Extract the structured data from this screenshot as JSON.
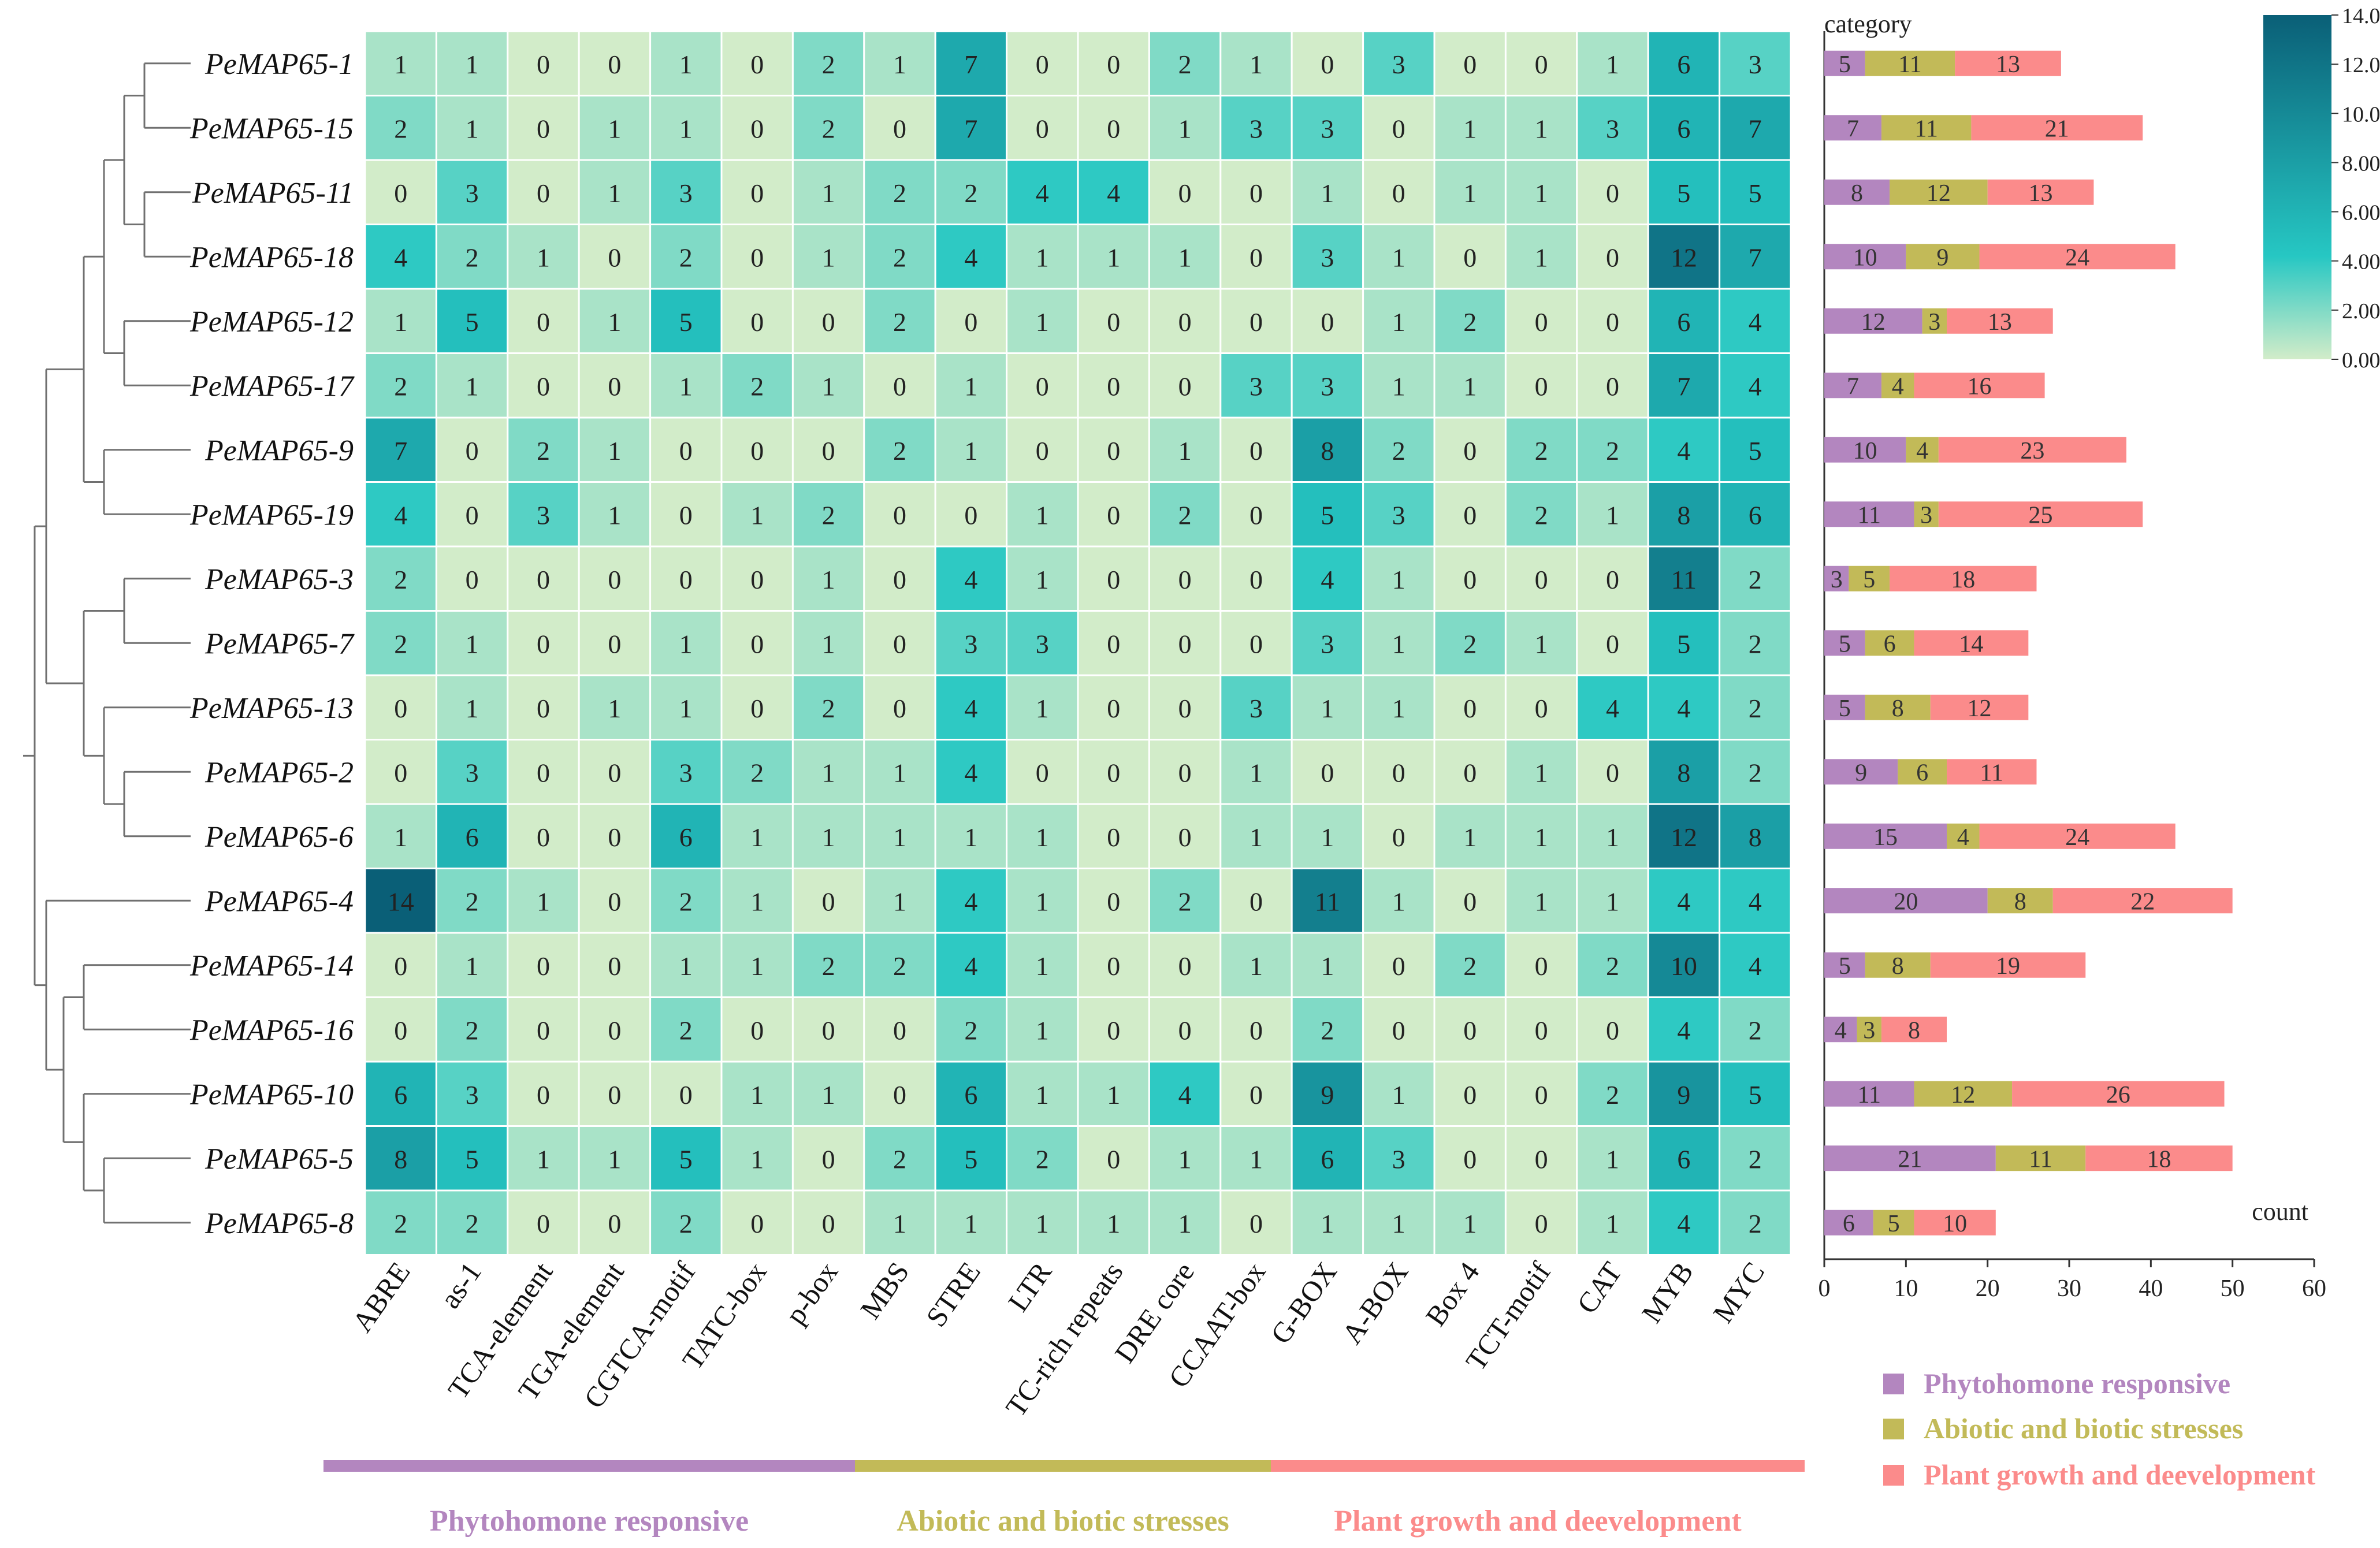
{
  "chart_data": [
    {
      "type": "heatmap",
      "rows": [
        "PeMAP65-1",
        "PeMAP65-15",
        "PeMAP65-11",
        "PeMAP65-18",
        "PeMAP65-12",
        "PeMAP65-17",
        "PeMAP65-9",
        "PeMAP65-19",
        "PeMAP65-3",
        "PeMAP65-7",
        "PeMAP65-13",
        "PeMAP65-2",
        "PeMAP65-6",
        "PeMAP65-4",
        "PeMAP65-14",
        "PeMAP65-16",
        "PeMAP65-10",
        "PeMAP65-5",
        "PeMAP65-8"
      ],
      "columns": [
        "ABRE",
        "as-1",
        "TCA-element",
        "TGA-element",
        "CGTCA-motif",
        "TATC-box",
        "p-box",
        "MBS",
        "STRE",
        "LTR",
        "TC-rich repeats",
        "DRE core",
        "CCAAT-box",
        "G-BOX",
        "A-BOX",
        "Box 4",
        "TCT-motif",
        "CAT",
        "MYB",
        "MYC"
      ],
      "values": [
        [
          1,
          1,
          0,
          0,
          1,
          0,
          2,
          1,
          7,
          0,
          0,
          2,
          1,
          0,
          3,
          0,
          0,
          1,
          6,
          3
        ],
        [
          2,
          1,
          0,
          1,
          1,
          0,
          2,
          0,
          7,
          0,
          0,
          1,
          3,
          3,
          0,
          1,
          1,
          3,
          6,
          7
        ],
        [
          0,
          3,
          0,
          1,
          3,
          0,
          1,
          2,
          2,
          4,
          4,
          0,
          0,
          1,
          0,
          1,
          1,
          0,
          5,
          5
        ],
        [
          4,
          2,
          1,
          0,
          2,
          0,
          1,
          2,
          4,
          1,
          1,
          1,
          0,
          3,
          1,
          0,
          1,
          0,
          12,
          7
        ],
        [
          1,
          5,
          0,
          1,
          5,
          0,
          0,
          2,
          0,
          1,
          0,
          0,
          0,
          0,
          1,
          2,
          0,
          0,
          6,
          4
        ],
        [
          2,
          1,
          0,
          0,
          1,
          2,
          1,
          0,
          1,
          0,
          0,
          0,
          3,
          3,
          1,
          1,
          0,
          0,
          7,
          4
        ],
        [
          7,
          0,
          2,
          1,
          0,
          0,
          0,
          2,
          1,
          0,
          0,
          1,
          0,
          8,
          2,
          0,
          2,
          2,
          4,
          5
        ],
        [
          4,
          0,
          3,
          1,
          0,
          1,
          2,
          0,
          0,
          1,
          0,
          2,
          0,
          5,
          3,
          0,
          2,
          1,
          8,
          6
        ],
        [
          2,
          0,
          0,
          0,
          0,
          0,
          1,
          0,
          4,
          1,
          0,
          0,
          0,
          4,
          1,
          0,
          0,
          0,
          11,
          2
        ],
        [
          2,
          1,
          0,
          0,
          1,
          0,
          1,
          0,
          3,
          3,
          0,
          0,
          0,
          3,
          1,
          2,
          1,
          0,
          5,
          2
        ],
        [
          0,
          1,
          0,
          1,
          1,
          0,
          2,
          0,
          4,
          1,
          0,
          0,
          3,
          1,
          1,
          0,
          0,
          4,
          4,
          2
        ],
        [
          0,
          3,
          0,
          0,
          3,
          2,
          1,
          1,
          4,
          0,
          0,
          0,
          1,
          0,
          0,
          0,
          1,
          0,
          8,
          2
        ],
        [
          1,
          6,
          0,
          0,
          6,
          1,
          1,
          1,
          1,
          1,
          0,
          0,
          1,
          1,
          0,
          1,
          1,
          1,
          12,
          8
        ],
        [
          14,
          2,
          1,
          0,
          2,
          1,
          0,
          1,
          4,
          1,
          0,
          2,
          0,
          11,
          1,
          0,
          1,
          1,
          4,
          4
        ],
        [
          0,
          1,
          0,
          0,
          1,
          1,
          2,
          2,
          4,
          1,
          0,
          0,
          1,
          1,
          0,
          2,
          0,
          2,
          10,
          4
        ],
        [
          0,
          2,
          0,
          0,
          2,
          0,
          0,
          0,
          2,
          1,
          0,
          0,
          0,
          2,
          0,
          0,
          0,
          0,
          4,
          2
        ],
        [
          6,
          3,
          0,
          0,
          0,
          1,
          1,
          0,
          6,
          1,
          1,
          4,
          0,
          9,
          1,
          0,
          0,
          2,
          9,
          5
        ],
        [
          8,
          5,
          1,
          1,
          5,
          1,
          0,
          2,
          5,
          2,
          0,
          1,
          1,
          6,
          3,
          0,
          0,
          1,
          6,
          2
        ],
        [
          2,
          2,
          0,
          0,
          2,
          0,
          0,
          1,
          1,
          1,
          1,
          1,
          0,
          1,
          1,
          1,
          0,
          1,
          4,
          2
        ]
      ],
      "colorbar": {
        "ticks": [
          "0.00",
          "2.00",
          "4.00",
          "6.00",
          "8.00",
          "10.00",
          "12.00",
          "14.00"
        ],
        "range": [
          0,
          14
        ],
        "colors": [
          "#d2ecc9",
          "#26c7c3",
          "#0a5f77"
        ]
      },
      "column_groups": [
        {
          "name": "Phytohomone responsive",
          "color": "#b386bf",
          "from": 0,
          "to": 9
        },
        {
          "name": "Abiotic and biotic stresses",
          "color": "#c2ba58",
          "from": 10,
          "to": 17
        },
        {
          "name": "Plant growth and deevelopment",
          "color": "#fb8b8b",
          "from": 18,
          "to": 27
        }
      ],
      "dendrogram": {
        "type": "tree",
        "leaf_order": [
          "PeMAP65-1",
          "PeMAP65-15",
          "PeMAP65-11",
          "PeMAP65-18",
          "PeMAP65-12",
          "PeMAP65-17",
          "PeMAP65-9",
          "PeMAP65-19",
          "PeMAP65-3",
          "PeMAP65-7",
          "PeMAP65-13",
          "PeMAP65-2",
          "PeMAP65-6",
          "PeMAP65-4",
          "PeMAP65-14",
          "PeMAP65-16",
          "PeMAP65-10",
          "PeMAP65-5",
          "PeMAP65-8"
        ]
      }
    },
    {
      "type": "bar",
      "orientation": "horizontal",
      "stacked": true,
      "title": "category",
      "xlabel": "count",
      "xlim": [
        0,
        60
      ],
      "xticks": [
        0,
        10,
        20,
        30,
        40,
        50,
        60
      ],
      "categories": [
        "PeMAP65-1",
        "PeMAP65-15",
        "PeMAP65-11",
        "PeMAP65-18",
        "PeMAP65-12",
        "PeMAP65-17",
        "PeMAP65-9",
        "PeMAP65-19",
        "PeMAP65-3",
        "PeMAP65-7",
        "PeMAP65-13",
        "PeMAP65-2",
        "PeMAP65-6",
        "PeMAP65-4",
        "PeMAP65-14",
        "PeMAP65-16",
        "PeMAP65-10",
        "PeMAP65-5",
        "PeMAP65-8"
      ],
      "series": [
        {
          "name": "Phytohomone responsive",
          "color": "#b386bf",
          "values": [
            5,
            7,
            8,
            10,
            12,
            7,
            10,
            11,
            3,
            5,
            5,
            9,
            15,
            20,
            5,
            4,
            11,
            21,
            6
          ]
        },
        {
          "name": "Abiotic and biotic stresses",
          "color": "#c2ba58",
          "values": [
            11,
            11,
            12,
            9,
            3,
            4,
            4,
            3,
            5,
            6,
            8,
            6,
            4,
            8,
            8,
            3,
            12,
            11,
            5
          ]
        },
        {
          "name": "Plant growth and deevelopment",
          "color": "#fb8b8b",
          "values": [
            13,
            21,
            13,
            24,
            13,
            16,
            23,
            25,
            18,
            14,
            12,
            11,
            24,
            22,
            19,
            8,
            26,
            18,
            10
          ]
        }
      ],
      "legend": "bottom-right"
    }
  ]
}
